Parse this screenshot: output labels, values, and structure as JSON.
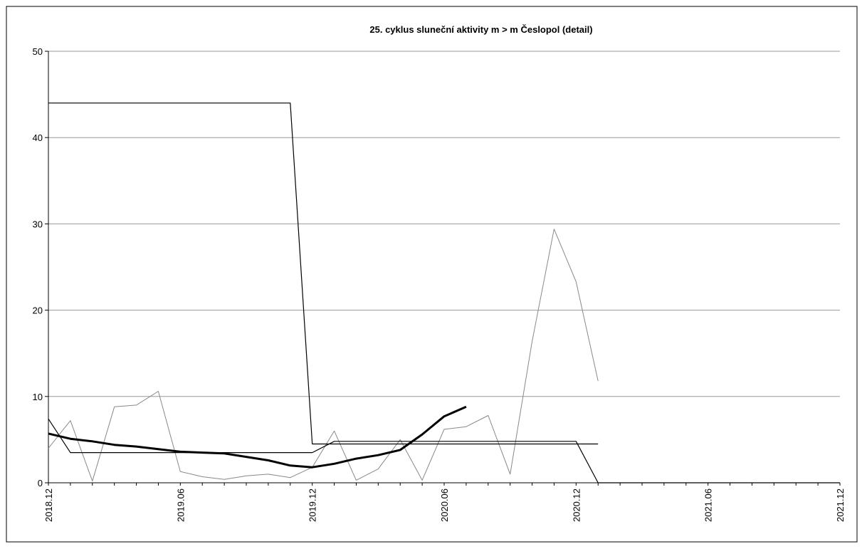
{
  "chart_data": {
    "type": "line",
    "title": "25. cyklus sluneční aktivity m > m Česlopol (detail)",
    "xlabel": "",
    "ylabel": "",
    "x_ticks": [
      "2018.12",
      "2019.06",
      "2019.12",
      "2020.06",
      "2020.12",
      "2021.06",
      "2021.12"
    ],
    "xlim": [
      "2018.12",
      "2021.12"
    ],
    "ylim": [
      0,
      50
    ],
    "y_ticks": [
      0,
      10,
      20,
      30,
      40,
      50
    ],
    "grid": true,
    "legend": "none",
    "colors": {
      "thin_gray": "#888888",
      "bold": "#000000",
      "thin_black": "#000000",
      "grid": "#999999"
    },
    "series": [
      {
        "style": "thin-gray",
        "points": [
          [
            "2018.12",
            4.0
          ],
          [
            "2019.01",
            7.2
          ],
          [
            "2019.02",
            0.2
          ],
          [
            "2019.03",
            8.8
          ],
          [
            "2019.04",
            9.0
          ],
          [
            "2019.05",
            10.6
          ],
          [
            "2019.06",
            1.3
          ],
          [
            "2019.07",
            0.7
          ],
          [
            "2019.08",
            0.4
          ],
          [
            "2019.09",
            0.8
          ],
          [
            "2019.10",
            1.0
          ],
          [
            "2019.11",
            0.6
          ],
          [
            "2019.12",
            1.8
          ],
          [
            "2020.01",
            6.0
          ],
          [
            "2020.02",
            0.3
          ],
          [
            "2020.03",
            1.6
          ],
          [
            "2020.04",
            5.0
          ],
          [
            "2020.05",
            0.3
          ],
          [
            "2020.06",
            6.2
          ],
          [
            "2020.07",
            6.5
          ],
          [
            "2020.08",
            7.8
          ],
          [
            "2020.09",
            1.0
          ],
          [
            "2020.10",
            16.4
          ],
          [
            "2020.11",
            29.4
          ],
          [
            "2020.12",
            23.3
          ],
          [
            "2021.01",
            11.8
          ]
        ]
      },
      {
        "style": "thick-black",
        "points": [
          [
            "2018.12",
            5.7
          ],
          [
            "2019.01",
            5.1
          ],
          [
            "2019.02",
            4.8
          ],
          [
            "2019.03",
            4.4
          ],
          [
            "2019.04",
            4.2
          ],
          [
            "2019.05",
            3.9
          ],
          [
            "2019.06",
            3.6
          ],
          [
            "2019.07",
            3.5
          ],
          [
            "2019.08",
            3.4
          ],
          [
            "2019.09",
            3.0
          ],
          [
            "2019.10",
            2.6
          ],
          [
            "2019.11",
            2.0
          ],
          [
            "2019.12",
            1.8
          ],
          [
            "2020.01",
            2.2
          ],
          [
            "2020.02",
            2.8
          ],
          [
            "2020.03",
            3.2
          ],
          [
            "2020.04",
            3.8
          ],
          [
            "2020.05",
            5.6
          ],
          [
            "2020.06",
            7.7
          ],
          [
            "2020.07",
            8.8
          ]
        ]
      },
      {
        "style": "thin-black",
        "points": [
          [
            "2018.12",
            44.0
          ],
          [
            "2019.11",
            44.0
          ],
          [
            "2019.12",
            4.5
          ],
          [
            "2021.01",
            4.5
          ]
        ]
      },
      {
        "style": "thin-black",
        "points": [
          [
            "2018.12",
            7.4
          ],
          [
            "2019.01",
            3.5
          ],
          [
            "2019.12",
            3.5
          ],
          [
            "2020.01",
            4.8
          ],
          [
            "2020.12",
            4.8
          ],
          [
            "2021.01",
            0.0
          ],
          [
            "2021.12",
            0.0
          ]
        ]
      }
    ]
  }
}
